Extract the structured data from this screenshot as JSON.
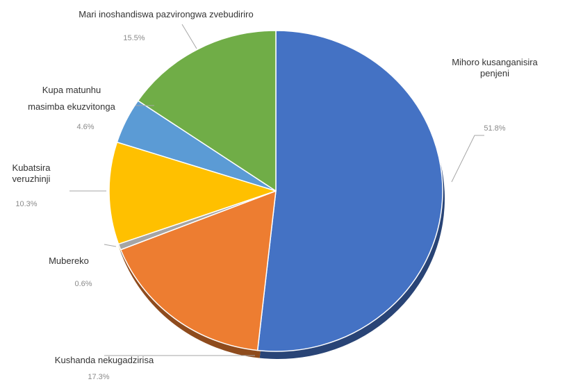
{
  "chart_data": {
    "type": "pie",
    "style": "3d-pie",
    "title": "",
    "categories": [
      "Mihoro kusanganisira penjeni",
      "Kushanda nekugadzirisa",
      "Mubereko",
      "Kubatsira veruzhinji",
      "Kupa matunhu masimba ekuzvitonga",
      "Mari inoshandiswa pazvirongwa zvebudiriro"
    ],
    "values": [
      51.8,
      17.3,
      0.6,
      10.3,
      4.6,
      15.5
    ],
    "value_labels": [
      "51.8%",
      "17.3%",
      "0.6%",
      "10.3%",
      "4.6%",
      "15.5%"
    ],
    "label_lines": [
      [
        "Mihoro kusanganisira",
        "penjeni"
      ],
      [
        "Kushanda nekugadzirisa"
      ],
      [
        "Mubereko"
      ],
      [
        "Kubatsira",
        "veruzhinji"
      ],
      [
        "Kupa matunhu",
        "masimba ekuzvitonga"
      ],
      [
        "Mari inoshandiswa pazvirongwa zvebudiriro"
      ]
    ],
    "colors": [
      "#4472C4",
      "#ED7D31",
      "#A5A5A5",
      "#FFC000",
      "#5B9BD5",
      "#70AD47"
    ],
    "start_angle": "12 o'clock",
    "direction": "clockwise",
    "legend": "none"
  }
}
